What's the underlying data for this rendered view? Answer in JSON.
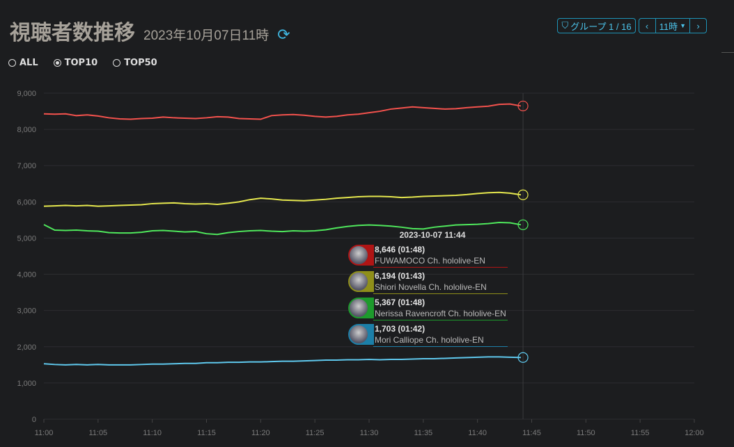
{
  "header": {
    "title": "視聴者数推移",
    "date": "2023年10月07日11時",
    "refresh_icon": "refresh-icon",
    "group_label": "グループ 1 / 16",
    "hour_label": "11時"
  },
  "filters": [
    {
      "label": "ALL",
      "selected": false
    },
    {
      "label": "TOP10",
      "selected": true
    },
    {
      "label": "TOP50",
      "selected": false
    }
  ],
  "tooltip": {
    "time": "2023-10-07 11:44",
    "items": [
      {
        "value": "8,646",
        "duration": "(01:48)",
        "name": "FUWAMOCO Ch. hololive-EN",
        "color": "#b01515"
      },
      {
        "value": "6,194",
        "duration": "(01:43)",
        "name": "Shiori Novella Ch. hololive-EN",
        "color": "#8f8f1a"
      },
      {
        "value": "5,367",
        "duration": "(01:48)",
        "name": "Nerissa Ravencroft Ch. hololive-EN",
        "color": "#1d9a2c"
      },
      {
        "value": "1,703",
        "duration": "(01:42)",
        "name": "Mori Calliope Ch. hololive-EN",
        "color": "#1c7fa8"
      }
    ]
  },
  "chart_data": {
    "type": "line",
    "title": "視聴者数推移",
    "xlabel": "",
    "ylabel": "",
    "ylim": [
      0,
      9000
    ],
    "grid": true,
    "y_ticks": [
      "0",
      "1,000",
      "2,000",
      "3,000",
      "4,000",
      "5,000",
      "6,000",
      "7,000",
      "8,000",
      "9,000"
    ],
    "x_ticks": [
      "11:00",
      "11:05",
      "11:10",
      "11:15",
      "11:20",
      "11:25",
      "11:30",
      "11:35",
      "11:40",
      "11:45",
      "11:50",
      "11:55",
      "12:00"
    ],
    "x_minutes_step": 1,
    "series": [
      {
        "name": "FUWAMOCO Ch. hololive-EN",
        "color": "#f4524d",
        "values": [
          8430,
          8420,
          8430,
          8380,
          8400,
          8370,
          8320,
          8290,
          8280,
          8300,
          8310,
          8340,
          8320,
          8310,
          8300,
          8320,
          8350,
          8340,
          8300,
          8290,
          8280,
          8380,
          8400,
          8410,
          8390,
          8360,
          8340,
          8360,
          8400,
          8420,
          8460,
          8500,
          8560,
          8590,
          8620,
          8600,
          8580,
          8560,
          8570,
          8600,
          8620,
          8640,
          8690,
          8700,
          8646
        ]
      },
      {
        "name": "Shiori Novella Ch. hololive-EN",
        "color": "#e6e84e",
        "values": [
          5880,
          5890,
          5900,
          5890,
          5900,
          5880,
          5890,
          5900,
          5910,
          5920,
          5950,
          5960,
          5970,
          5950,
          5940,
          5950,
          5930,
          5960,
          6000,
          6060,
          6100,
          6080,
          6050,
          6040,
          6030,
          6050,
          6070,
          6100,
          6120,
          6140,
          6150,
          6150,
          6140,
          6120,
          6130,
          6150,
          6160,
          6170,
          6180,
          6200,
          6230,
          6250,
          6260,
          6240,
          6194
        ]
      },
      {
        "name": "Nerissa Ravencroft Ch. hololive-EN",
        "color": "#4fe85c",
        "values": [
          5370,
          5220,
          5210,
          5220,
          5200,
          5190,
          5150,
          5140,
          5140,
          5160,
          5200,
          5210,
          5190,
          5170,
          5180,
          5120,
          5100,
          5150,
          5180,
          5200,
          5210,
          5190,
          5180,
          5200,
          5190,
          5200,
          5230,
          5280,
          5320,
          5350,
          5360,
          5350,
          5330,
          5300,
          5260,
          5250,
          5300,
          5330,
          5360,
          5370,
          5380,
          5400,
          5430,
          5420,
          5367
        ]
      },
      {
        "name": "Mori Calliope Ch. hololive-EN",
        "color": "#5fc9ee",
        "values": [
          1530,
          1510,
          1500,
          1510,
          1500,
          1510,
          1500,
          1500,
          1500,
          1510,
          1520,
          1520,
          1530,
          1540,
          1540,
          1560,
          1560,
          1570,
          1570,
          1580,
          1580,
          1590,
          1600,
          1600,
          1610,
          1620,
          1630,
          1630,
          1640,
          1640,
          1650,
          1640,
          1650,
          1650,
          1660,
          1670,
          1670,
          1680,
          1690,
          1700,
          1710,
          1720,
          1720,
          1710,
          1703
        ]
      }
    ]
  }
}
